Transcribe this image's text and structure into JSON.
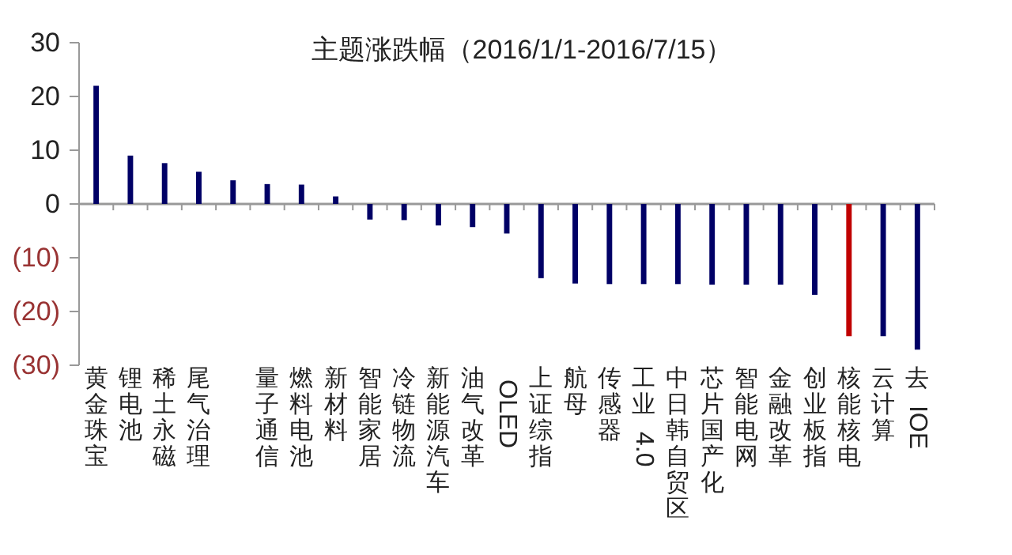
{
  "chart_data": {
    "type": "bar",
    "title": "主题涨跌幅（2016/1/1-2016/7/15）",
    "categories": [
      "黄金珠宝",
      "锂电池",
      "稀土永磁",
      "尾气治理",
      null,
      "量子通信",
      "燃料电池",
      "新材料",
      "智能家居",
      "冷链物流",
      "新能源汽车",
      "油气改革",
      "OLED",
      "上证综指",
      "航母",
      "传感器",
      "工业4.0",
      "中日韩自贸区",
      "芯片国产化",
      "智能电网",
      "金融改革",
      "创业板指",
      "核能核电",
      "云计算",
      "去IOE"
    ],
    "values": [
      22.0,
      9.0,
      7.6,
      6.0,
      4.4,
      3.7,
      3.6,
      1.4,
      -2.9,
      -3.0,
      -4.0,
      -4.3,
      -5.5,
      -13.8,
      -14.8,
      -14.9,
      -14.9,
      -14.9,
      -15.0,
      -15.0,
      -15.0,
      -16.9,
      -24.6,
      -24.6,
      -27.1
    ],
    "colors": [
      "#000066",
      "#000066",
      "#000066",
      "#000066",
      "#000066",
      "#000066",
      "#000066",
      "#000066",
      "#000066",
      "#000066",
      "#000066",
      "#000066",
      "#000066",
      "#000066",
      "#000066",
      "#000066",
      "#000066",
      "#000066",
      "#000066",
      "#000066",
      "#000066",
      "#000066",
      "#c00000",
      "#000066",
      "#000066"
    ],
    "ylim": [
      -30,
      30
    ],
    "yticks": [
      30,
      20,
      10,
      0,
      {
        "value": -10,
        "label": "(10)"
      },
      {
        "value": -20,
        "label": "(20)"
      },
      {
        "value": -30,
        "label": "(30)"
      }
    ]
  }
}
